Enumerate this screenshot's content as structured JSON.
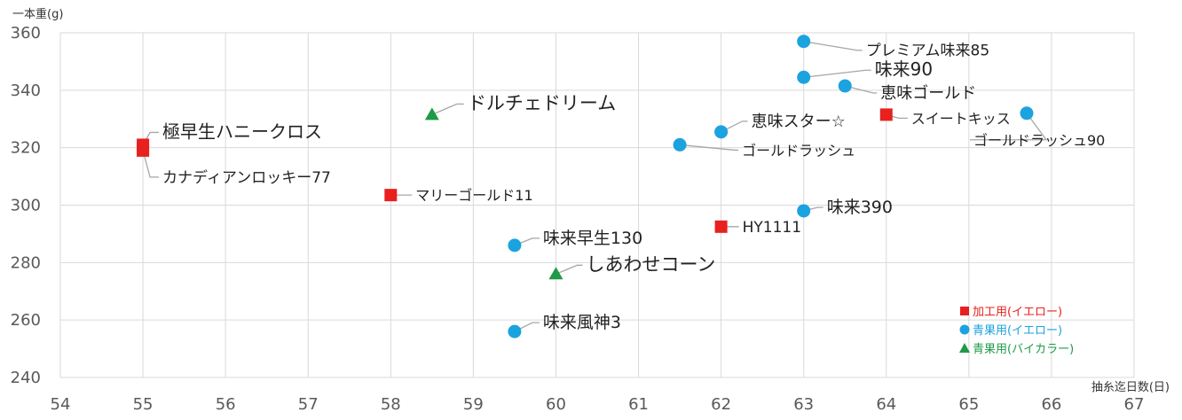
{
  "chart_data": {
    "type": "scatter",
    "ylabel": "一本重(g)",
    "xlabel": "抽糸迄日数(日)",
    "xlim": [
      54,
      67
    ],
    "ylim": [
      240,
      360
    ],
    "x_ticks": [
      "54",
      "55",
      "56",
      "57",
      "58",
      "59",
      "60",
      "61",
      "62",
      "63",
      "64",
      "65",
      "66",
      "67"
    ],
    "y_ticks": [
      "240",
      "260",
      "280",
      "300",
      "320",
      "340",
      "360"
    ],
    "grid": true,
    "legend_position": "bottom-right",
    "series": [
      {
        "name": "加工用(イエロー)",
        "marker": "square",
        "color": "#e8201e",
        "points": [
          {
            "x": 55,
            "y": 321,
            "label": "極早生ハニークロス"
          },
          {
            "x": 55,
            "y": 319,
            "label": "カナディアンロッキー77"
          },
          {
            "x": 58,
            "y": 303.5,
            "label": "マリーゴールド11"
          },
          {
            "x": 62,
            "y": 292.5,
            "label": "HY1111"
          },
          {
            "x": 64,
            "y": 331.5,
            "label": "スイートキッス"
          }
        ]
      },
      {
        "name": "青果用(イエロー)",
        "marker": "circle",
        "color": "#1aa3de",
        "points": [
          {
            "x": 63,
            "y": 357,
            "label": "プレミアム味来85"
          },
          {
            "x": 63,
            "y": 344.5,
            "label": "味来90"
          },
          {
            "x": 63.5,
            "y": 341.5,
            "label": "恵味ゴールド"
          },
          {
            "x": 62,
            "y": 325.5,
            "label": "恵味スター☆"
          },
          {
            "x": 61.5,
            "y": 321,
            "label": "ゴールドラッシュ"
          },
          {
            "x": 65.7,
            "y": 332,
            "label": "ゴールドラッシュ90"
          },
          {
            "x": 63,
            "y": 298,
            "label": "味来390"
          },
          {
            "x": 59.5,
            "y": 286,
            "label": "味来早生130"
          },
          {
            "x": 59.5,
            "y": 256,
            "label": "味来風神3"
          }
        ]
      },
      {
        "name": "青果用(バイカラー)",
        "marker": "triangle",
        "color": "#1f9a48",
        "points": [
          {
            "x": 58.5,
            "y": 331.5,
            "label": "ドルチェドリーム"
          },
          {
            "x": 60,
            "y": 276,
            "label": "しあわせコーン"
          }
        ]
      }
    ]
  }
}
